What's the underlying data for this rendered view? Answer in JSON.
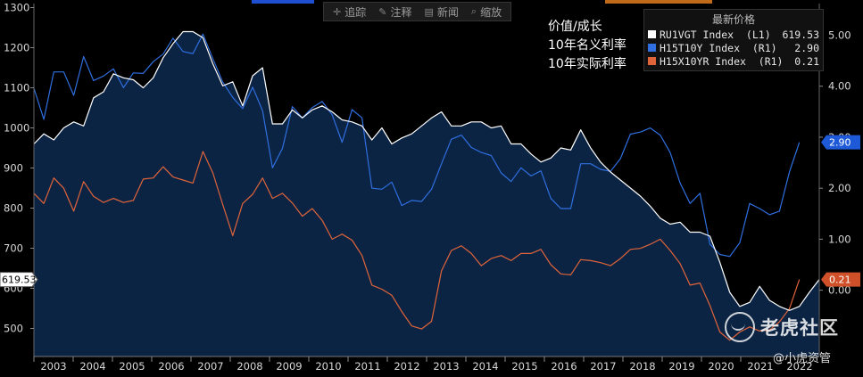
{
  "toolbar": {
    "items": [
      {
        "icon": "crosshair-icon",
        "label": "追踪"
      },
      {
        "icon": "pen-icon",
        "label": "注释"
      },
      {
        "icon": "news-icon",
        "label": "新闻"
      },
      {
        "icon": "zoom-icon",
        "label": "缩放"
      }
    ]
  },
  "annotation": {
    "line1": "价值/成长",
    "line2": "10年名义利率",
    "line3": "10年实际利率"
  },
  "legend": {
    "title": "最新价格",
    "entries": [
      {
        "name": "RU1VGT Index  (L1)",
        "value": "619.53",
        "color": "#ffffff"
      },
      {
        "name": "H15T10Y Index  (R1)",
        "value": "2.90",
        "color": "#2f6fe0"
      },
      {
        "name": "H15X10YR Index  (R1)",
        "value": "0.21",
        "color": "#e0643a"
      }
    ]
  },
  "last_value_tags": {
    "left": "619.53",
    "right_nominal": "2.90",
    "right_real": "0.21"
  },
  "watermark": {
    "brand": "老虎社区",
    "user": "@小虎资管"
  },
  "chart_data": {
    "type": "line",
    "x_labels": [
      "2003",
      "2004",
      "2005",
      "2006",
      "2007",
      "2008",
      "2009",
      "2010",
      "2011",
      "2012",
      "2013",
      "2014",
      "2015",
      "2016",
      "2017",
      "2018",
      "2019",
      "2020",
      "2021",
      "2022"
    ],
    "y_left": {
      "min": 430,
      "max": 1310,
      "ticks": [
        500,
        600,
        700,
        800,
        900,
        1000,
        1100,
        1200,
        1300
      ]
    },
    "y_right": {
      "min": -1.3,
      "max": 5.62,
      "ticks": [
        "5.00",
        "4.00",
        "3.00",
        "2.00",
        "1.00",
        "0.00"
      ]
    },
    "grid": false,
    "legend_position": "top-right",
    "series": [
      {
        "name": "RU1VGT Index (L1)",
        "axis": "left",
        "color": "#ffffff",
        "area": true,
        "values": [
          960,
          985,
          970,
          1000,
          1015,
          1005,
          1075,
          1090,
          1135,
          1125,
          1120,
          1100,
          1125,
          1175,
          1210,
          1240,
          1240,
          1225,
          1160,
          1105,
          1115,
          1055,
          1130,
          1150,
          1010,
          1010,
          1045,
          1025,
          1045,
          1055,
          1040,
          1020,
          1015,
          1005,
          970,
          1000,
          960,
          975,
          985,
          1005,
          1025,
          1040,
          1005,
          1005,
          1015,
          1015,
          1000,
          1005,
          960,
          960,
          935,
          915,
          925,
          950,
          945,
          995,
          950,
          915,
          890,
          870,
          850,
          830,
          805,
          775,
          760,
          765,
          740,
          740,
          730,
          665,
          590,
          555,
          565,
          605,
          570,
          555,
          545,
          555,
          590,
          622
        ]
      },
      {
        "name": "H15T10Y Index (R1)",
        "axis": "right",
        "color": "#2f6fe0",
        "values": [
          3.96,
          3.35,
          4.28,
          4.28,
          3.82,
          4.58,
          4.11,
          4.2,
          4.34,
          3.97,
          4.26,
          4.25,
          4.48,
          4.63,
          4.94,
          4.68,
          4.64,
          5.02,
          4.54,
          4.08,
          3.78,
          3.56,
          3.98,
          3.52,
          2.4,
          2.78,
          3.6,
          3.38,
          3.58,
          3.7,
          3.44,
          2.9,
          3.54,
          3.38,
          2.0,
          1.98,
          2.12,
          1.66,
          1.76,
          1.74,
          1.98,
          2.48,
          2.96,
          3.04,
          2.8,
          2.7,
          2.64,
          2.3,
          2.13,
          2.4,
          2.24,
          2.34,
          1.8,
          1.6,
          1.6,
          2.48,
          2.48,
          2.37,
          2.33,
          2.58,
          3.06,
          3.1,
          3.18,
          3.04,
          2.7,
          2.1,
          1.7,
          1.9,
          0.9,
          0.7,
          0.66,
          0.93,
          1.7,
          1.6,
          1.48,
          1.55,
          2.32,
          2.9
        ]
      },
      {
        "name": "H15X10YR Index (R1)",
        "axis": "right",
        "color": "#e0643a",
        "values": [
          1.9,
          1.7,
          2.2,
          2.0,
          1.55,
          2.13,
          1.84,
          1.72,
          1.8,
          1.72,
          1.76,
          2.18,
          2.2,
          2.42,
          2.22,
          2.16,
          2.1,
          2.72,
          2.3,
          1.68,
          1.07,
          1.7,
          1.88,
          2.2,
          1.8,
          1.9,
          1.71,
          1.45,
          1.6,
          1.37,
          1.0,
          1.1,
          0.98,
          0.68,
          0.1,
          0.02,
          -0.1,
          -0.42,
          -0.7,
          -0.76,
          -0.61,
          0.38,
          0.78,
          0.87,
          0.72,
          0.48,
          0.62,
          0.68,
          0.58,
          0.72,
          0.72,
          0.8,
          0.5,
          0.32,
          0.3,
          0.6,
          0.58,
          0.54,
          0.48,
          0.62,
          0.8,
          0.82,
          0.9,
          1.0,
          0.78,
          0.52,
          0.1,
          0.14,
          -0.3,
          -0.82,
          -0.98,
          -0.82,
          -0.72,
          -0.8,
          -0.78,
          -0.62,
          -0.36,
          0.21
        ]
      }
    ]
  }
}
